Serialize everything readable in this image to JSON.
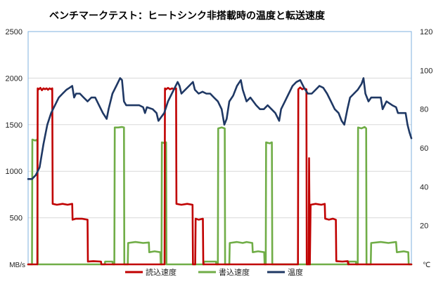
{
  "chart_data": {
    "type": "line",
    "title": "ベンチマークテスト：ヒートシンク非搭載時の温度と転送速度",
    "y_left": {
      "unit": "MB/s",
      "lim": [
        0,
        2500
      ],
      "ticks": [
        500,
        1000,
        1500,
        2000,
        2500
      ]
    },
    "y_right": {
      "unit": "℃",
      "lim": [
        0,
        120
      ],
      "ticks": [
        20,
        40,
        60,
        80,
        100,
        120
      ]
    },
    "x": {
      "lim": [
        0,
        100
      ]
    },
    "grid": true,
    "legend_position": "bottom",
    "colors": {
      "read": "#c00000",
      "write": "#70ad47",
      "temp": "#1f3864",
      "grid": "#d9d9d9",
      "plot_border": "#7fb2df"
    },
    "series": [
      {
        "name": "読込速度",
        "axis": "left",
        "color": "#c00000",
        "points": [
          [
            0,
            0
          ],
          [
            2.4,
            0
          ],
          [
            2.5,
            1890
          ],
          [
            2.8,
            1880
          ],
          [
            3.2,
            1895
          ],
          [
            3.6,
            1870
          ],
          [
            4,
            1890
          ],
          [
            4.4,
            1880
          ],
          [
            4.8,
            1890
          ],
          [
            5.2,
            1875
          ],
          [
            5.6,
            1890
          ],
          [
            6,
            1880
          ],
          [
            6.3,
            1890
          ],
          [
            6.4,
            650
          ],
          [
            7.5,
            640
          ],
          [
            9,
            650
          ],
          [
            10.3,
            640
          ],
          [
            11.5,
            650
          ],
          [
            11.6,
            480
          ],
          [
            12.5,
            490
          ],
          [
            14,
            490
          ],
          [
            15.5,
            480
          ],
          [
            15.6,
            30
          ],
          [
            17,
            35
          ],
          [
            19,
            30
          ],
          [
            19.1,
            0
          ],
          [
            35.6,
            0
          ],
          [
            35.7,
            1890
          ],
          [
            36,
            1880
          ],
          [
            36.5,
            1895
          ],
          [
            37,
            1880
          ],
          [
            37.6,
            1890
          ],
          [
            38,
            1880
          ],
          [
            38.6,
            1890
          ],
          [
            38.7,
            650
          ],
          [
            40,
            640
          ],
          [
            41.5,
            650
          ],
          [
            42.9,
            640
          ],
          [
            43,
            0
          ],
          [
            43.6,
            0
          ],
          [
            43.7,
            490
          ],
          [
            44.5,
            480
          ],
          [
            45.6,
            490
          ],
          [
            45.7,
            0
          ],
          [
            70.4,
            0
          ],
          [
            70.5,
            1880
          ],
          [
            71,
            1900
          ],
          [
            71.5,
            1880
          ],
          [
            72,
            1890
          ],
          [
            72.6,
            1880
          ],
          [
            72.7,
            0
          ],
          [
            73.2,
            0
          ],
          [
            73.3,
            1140
          ],
          [
            73.5,
            0
          ],
          [
            73.7,
            640
          ],
          [
            75,
            650
          ],
          [
            76.5,
            640
          ],
          [
            77.4,
            650
          ],
          [
            77.5,
            490
          ],
          [
            78.5,
            480
          ],
          [
            79.5,
            490
          ],
          [
            80.3,
            480
          ],
          [
            80.4,
            35
          ],
          [
            82,
            30
          ],
          [
            83.4,
            35
          ],
          [
            83.5,
            0
          ],
          [
            100,
            0
          ]
        ]
      },
      {
        "name": "書込速度",
        "axis": "left",
        "color": "#70ad47",
        "points": [
          [
            0,
            0
          ],
          [
            1,
            0
          ],
          [
            1.1,
            1340
          ],
          [
            1.8,
            1330
          ],
          [
            2.4,
            1340
          ],
          [
            2.5,
            0
          ],
          [
            20,
            0
          ],
          [
            20.1,
            30
          ],
          [
            22,
            30
          ],
          [
            22.1,
            0
          ],
          [
            22.5,
            0
          ],
          [
            22.6,
            1470
          ],
          [
            23.5,
            1470
          ],
          [
            24.5,
            1475
          ],
          [
            25,
            1470
          ],
          [
            25.1,
            0
          ],
          [
            26,
            0
          ],
          [
            26.1,
            230
          ],
          [
            28,
            240
          ],
          [
            30,
            230
          ],
          [
            31.5,
            235
          ],
          [
            31.6,
            130
          ],
          [
            33,
            140
          ],
          [
            34.5,
            130
          ],
          [
            34.6,
            0
          ],
          [
            34.8,
            0
          ],
          [
            34.9,
            1310
          ],
          [
            35.8,
            1300
          ],
          [
            36,
            1310
          ],
          [
            36.1,
            0
          ],
          [
            45.8,
            0
          ],
          [
            45.9,
            30
          ],
          [
            49,
            30
          ],
          [
            49.1,
            0
          ],
          [
            49.5,
            0
          ],
          [
            49.6,
            1460
          ],
          [
            50.5,
            1470
          ],
          [
            51.3,
            1460
          ],
          [
            51.4,
            0
          ],
          [
            52.5,
            0
          ],
          [
            52.6,
            230
          ],
          [
            54.5,
            240
          ],
          [
            56,
            230
          ],
          [
            57,
            240
          ],
          [
            58.5,
            230
          ],
          [
            58.6,
            130
          ],
          [
            60,
            140
          ],
          [
            61.6,
            130
          ],
          [
            61.7,
            0
          ],
          [
            62,
            0
          ],
          [
            62.1,
            1310
          ],
          [
            63,
            1300
          ],
          [
            63.6,
            1310
          ],
          [
            63.7,
            0
          ],
          [
            83.6,
            0
          ],
          [
            83.7,
            30
          ],
          [
            85.5,
            30
          ],
          [
            85.6,
            0
          ],
          [
            86,
            0
          ],
          [
            86.1,
            1470
          ],
          [
            87,
            1460
          ],
          [
            87.8,
            1475
          ],
          [
            88.2,
            1460
          ],
          [
            88.3,
            0
          ],
          [
            89.4,
            0
          ],
          [
            89.5,
            230
          ],
          [
            92,
            240
          ],
          [
            94,
            230
          ],
          [
            96,
            240
          ],
          [
            96.2,
            130
          ],
          [
            98,
            140
          ],
          [
            99.2,
            130
          ],
          [
            99.3,
            0
          ],
          [
            100,
            0
          ]
        ]
      },
      {
        "name": "温度",
        "axis": "right",
        "color": "#1f3864",
        "points": [
          [
            0,
            44
          ],
          [
            1,
            44
          ],
          [
            2,
            46
          ],
          [
            3,
            50
          ],
          [
            4,
            62
          ],
          [
            5,
            72
          ],
          [
            6,
            78
          ],
          [
            7,
            82
          ],
          [
            8,
            86
          ],
          [
            9,
            88
          ],
          [
            10,
            90
          ],
          [
            10.8,
            91
          ],
          [
            11.5,
            92
          ],
          [
            12,
            86
          ],
          [
            12.5,
            88
          ],
          [
            13.5,
            88
          ],
          [
            14.5,
            86
          ],
          [
            15.5,
            84
          ],
          [
            16.5,
            86
          ],
          [
            17.5,
            86
          ],
          [
            18.5,
            82
          ],
          [
            19.5,
            78
          ],
          [
            20.5,
            75
          ],
          [
            21,
            80
          ],
          [
            22,
            88
          ],
          [
            23,
            92
          ],
          [
            24,
            96
          ],
          [
            24.5,
            95
          ],
          [
            25,
            84
          ],
          [
            25.6,
            82
          ],
          [
            26.5,
            82
          ],
          [
            28,
            82
          ],
          [
            29,
            82
          ],
          [
            30,
            81
          ],
          [
            30.5,
            78
          ],
          [
            31,
            81
          ],
          [
            32.5,
            80
          ],
          [
            33.5,
            78
          ],
          [
            34,
            74
          ],
          [
            35.5,
            78
          ],
          [
            36.5,
            84
          ],
          [
            38,
            90
          ],
          [
            39,
            94
          ],
          [
            39.5,
            92
          ],
          [
            40,
            88
          ],
          [
            41,
            90
          ],
          [
            42,
            92
          ],
          [
            43,
            94
          ],
          [
            43.5,
            90
          ],
          [
            44.5,
            88
          ],
          [
            45.5,
            89
          ],
          [
            46.5,
            88
          ],
          [
            47.5,
            88
          ],
          [
            48.5,
            86
          ],
          [
            49.5,
            84
          ],
          [
            50.5,
            80
          ],
          [
            51.2,
            72
          ],
          [
            51.8,
            75
          ],
          [
            52.5,
            84
          ],
          [
            53.5,
            87
          ],
          [
            54.5,
            92
          ],
          [
            55.5,
            95
          ],
          [
            56,
            90
          ],
          [
            57,
            84
          ],
          [
            58,
            86
          ],
          [
            59.5,
            82
          ],
          [
            60.5,
            80
          ],
          [
            61.5,
            80
          ],
          [
            62.5,
            82
          ],
          [
            63.5,
            80
          ],
          [
            64.5,
            78
          ],
          [
            65.5,
            74
          ],
          [
            66,
            80
          ],
          [
            67,
            84
          ],
          [
            68,
            88
          ],
          [
            69,
            92
          ],
          [
            70,
            94
          ],
          [
            71,
            95
          ],
          [
            72,
            91
          ],
          [
            73,
            88
          ],
          [
            74,
            88
          ],
          [
            75,
            90
          ],
          [
            76,
            92
          ],
          [
            77,
            91
          ],
          [
            78,
            88
          ],
          [
            79,
            84
          ],
          [
            80,
            80
          ],
          [
            81,
            78
          ],
          [
            81.8,
            74
          ],
          [
            82.5,
            72
          ],
          [
            83.3,
            80
          ],
          [
            84,
            86
          ],
          [
            85,
            88
          ],
          [
            86,
            90
          ],
          [
            87,
            93
          ],
          [
            87.5,
            96
          ],
          [
            88,
            88
          ],
          [
            88.8,
            84
          ],
          [
            89.5,
            86
          ],
          [
            90.5,
            86
          ],
          [
            92,
            86
          ],
          [
            92.5,
            80
          ],
          [
            93.5,
            84
          ],
          [
            95,
            82
          ],
          [
            96,
            81
          ],
          [
            96.5,
            78
          ],
          [
            97.5,
            78
          ],
          [
            98.5,
            78
          ],
          [
            99,
            72
          ],
          [
            99.5,
            68
          ],
          [
            100,
            65
          ]
        ]
      }
    ]
  }
}
